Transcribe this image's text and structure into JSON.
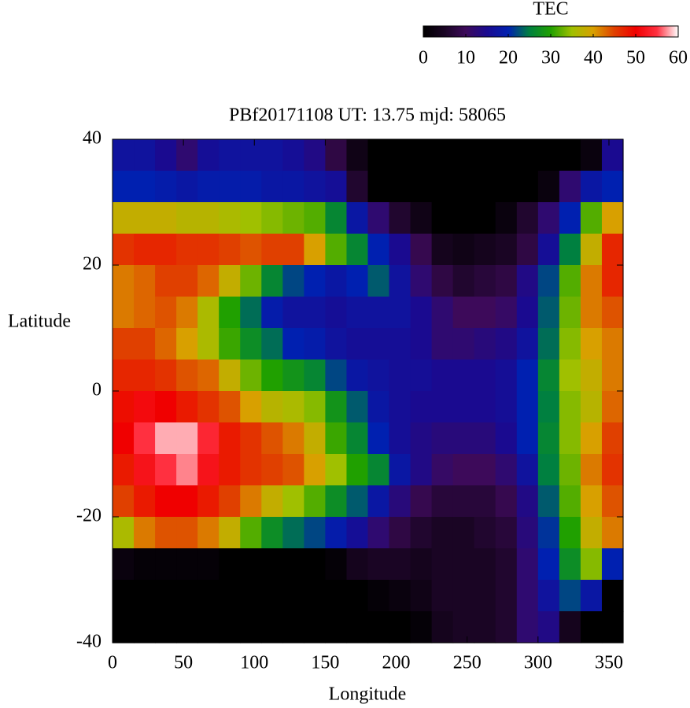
{
  "chart_data": {
    "type": "heatmap",
    "title": "PBf20171108  UT: 13.75  mjd: 58065",
    "xlabel": "Longitude",
    "ylabel": "Latitude",
    "x": [
      7.5,
      22.5,
      37.5,
      52.5,
      67.5,
      82.5,
      97.5,
      112.5,
      127.5,
      142.5,
      157.5,
      172.5,
      187.5,
      202.5,
      217.5,
      232.5,
      247.5,
      262.5,
      277.5,
      292.5,
      307.5,
      322.5,
      337.5,
      352.5
    ],
    "y": [
      37.5,
      32.5,
      27.5,
      22.5,
      17.5,
      12.5,
      7.5,
      2.5,
      -2.5,
      -7.5,
      -12.5,
      -17.5,
      -22.5,
      -27.5,
      -32.5,
      -37.5
    ],
    "values": [
      [
        17,
        17,
        15,
        12,
        16,
        17,
        17,
        17,
        16,
        14,
        8,
        3,
        0,
        0,
        0,
        0,
        0,
        0,
        0,
        0,
        0,
        0,
        2,
        15
      ],
      [
        20,
        20,
        19,
        18,
        19,
        19,
        19,
        18,
        18,
        17,
        16,
        6,
        0,
        0,
        0,
        0,
        0,
        0,
        0,
        0,
        2,
        12,
        18,
        20
      ],
      [
        38,
        38,
        38,
        37,
        37,
        36,
        35,
        34,
        33,
        32,
        26,
        18,
        12,
        6,
        3,
        0,
        0,
        0,
        2,
        6,
        12,
        20,
        32,
        40
      ],
      [
        46,
        47,
        47,
        46,
        46,
        45,
        44,
        45,
        45,
        40,
        32,
        26,
        20,
        15,
        9,
        4,
        3,
        4,
        5,
        8,
        16,
        25,
        38,
        47
      ],
      [
        42,
        43,
        45,
        45,
        43,
        38,
        33,
        26,
        22,
        20,
        18,
        20,
        23,
        17,
        12,
        8,
        6,
        7,
        8,
        14,
        22,
        32,
        42,
        47
      ],
      [
        42,
        43,
        44,
        42,
        36,
        30,
        24,
        19,
        17,
        17,
        16,
        17,
        17,
        17,
        15,
        12,
        10,
        10,
        11,
        15,
        23,
        33,
        42,
        44
      ],
      [
        45,
        45,
        43,
        40,
        36,
        31,
        27,
        24,
        20,
        19,
        17,
        16,
        16,
        16,
        15,
        12,
        12,
        13,
        14,
        17,
        24,
        34,
        40,
        42
      ],
      [
        47,
        47,
        46,
        44,
        43,
        38,
        33,
        30,
        28,
        26,
        22,
        18,
        17,
        16,
        16,
        15,
        15,
        15,
        16,
        20,
        26,
        35,
        38,
        42
      ],
      [
        49,
        51,
        50,
        48,
        46,
        44,
        40,
        37,
        36,
        34,
        28,
        23,
        18,
        16,
        15,
        15,
        15,
        15,
        16,
        20,
        25,
        34,
        37,
        43
      ],
      [
        50,
        55,
        58,
        58,
        54,
        48,
        46,
        44,
        42,
        38,
        31,
        26,
        20,
        16,
        14,
        13,
        13,
        13,
        15,
        20,
        26,
        34,
        40,
        45
      ],
      [
        48,
        52,
        55,
        57,
        52,
        48,
        46,
        45,
        44,
        40,
        35,
        30,
        26,
        18,
        14,
        11,
        10,
        10,
        12,
        17,
        25,
        33,
        42,
        46
      ],
      [
        45,
        48,
        50,
        50,
        48,
        45,
        42,
        38,
        35,
        32,
        27,
        23,
        18,
        13,
        9,
        7,
        7,
        7,
        9,
        14,
        23,
        32,
        40,
        44
      ],
      [
        36,
        42,
        44,
        44,
        42,
        38,
        32,
        27,
        24,
        22,
        19,
        16,
        12,
        8,
        6,
        5,
        5,
        6,
        7,
        13,
        21,
        30,
        38,
        42
      ],
      [
        2,
        1,
        1,
        1,
        1,
        0,
        0,
        0,
        0,
        0,
        1,
        4,
        5,
        5,
        4,
        5,
        5,
        5,
        6,
        12,
        20,
        27,
        34,
        20
      ],
      [
        0,
        0,
        0,
        0,
        0,
        0,
        0,
        0,
        0,
        0,
        0,
        0,
        1,
        2,
        3,
        5,
        5,
        5,
        6,
        12,
        17,
        22,
        18,
        0
      ],
      [
        0,
        0,
        0,
        0,
        0,
        0,
        0,
        0,
        0,
        0,
        0,
        0,
        0,
        0,
        1,
        4,
        5,
        5,
        6,
        12,
        14,
        4,
        0,
        0
      ]
    ],
    "xlim": [
      0,
      360
    ],
    "ylim": [
      -40,
      40
    ],
    "xticks": [
      0,
      50,
      100,
      150,
      200,
      250,
      300,
      350
    ],
    "yticks": [
      -40,
      -20,
      0,
      20,
      40
    ],
    "colorbar": {
      "label": "TEC",
      "lim": [
        0,
        60
      ],
      "ticks": [
        0,
        10,
        20,
        30,
        40,
        50,
        60
      ]
    },
    "colormap": [
      "#000000",
      "#1a0524",
      "#3d0a5a",
      "#1a0a90",
      "#0020b0",
      "#008040",
      "#20a000",
      "#a0c000",
      "#d8a000",
      "#e04000",
      "#f00000",
      "#ff3040",
      "#ffffff"
    ]
  }
}
